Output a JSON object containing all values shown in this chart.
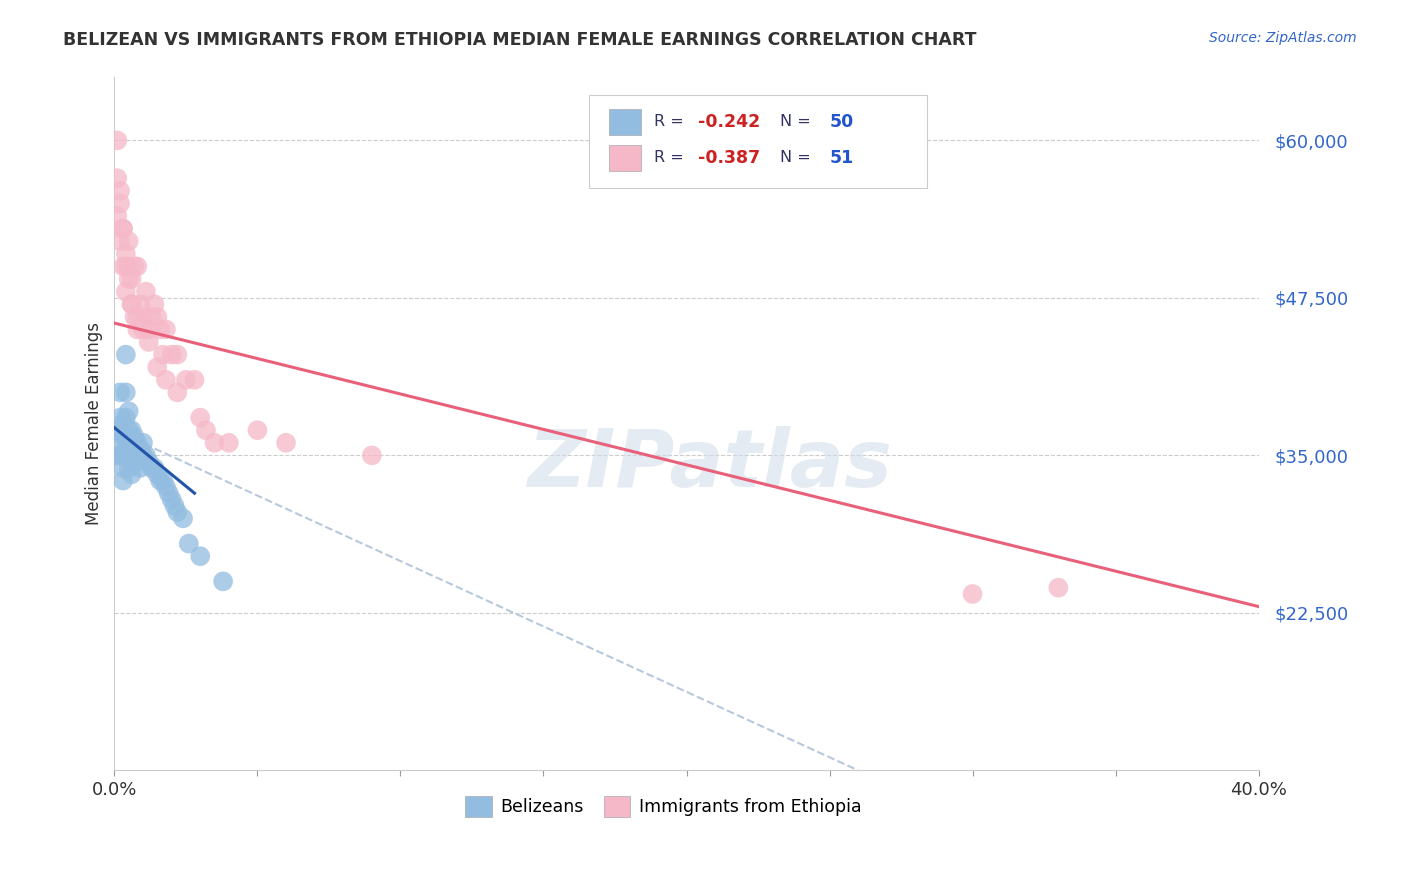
{
  "title": "BELIZEAN VS IMMIGRANTS FROM ETHIOPIA MEDIAN FEMALE EARNINGS CORRELATION CHART",
  "source": "Source: ZipAtlas.com",
  "ylabel": "Median Female Earnings",
  "xlim": [
    0.0,
    0.4
  ],
  "ylim": [
    10000,
    65000
  ],
  "ytick_vals": [
    22500,
    35000,
    47500,
    60000
  ],
  "blue_color": "#92bce0",
  "pink_color": "#f5b8c8",
  "trend_blue": "#2255aa",
  "trend_pink": "#e8607a",
  "trend_gray": "#b8c8dc",
  "watermark": "ZIPatlas",
  "belize_x": [
    0.001,
    0.001,
    0.002,
    0.002,
    0.002,
    0.003,
    0.003,
    0.003,
    0.003,
    0.004,
    0.004,
    0.004,
    0.004,
    0.005,
    0.005,
    0.005,
    0.006,
    0.006,
    0.006,
    0.007,
    0.007,
    0.008,
    0.008,
    0.009,
    0.009,
    0.01,
    0.01,
    0.011,
    0.012,
    0.013,
    0.014,
    0.015,
    0.016,
    0.017,
    0.018,
    0.019,
    0.02,
    0.021,
    0.022,
    0.024,
    0.001,
    0.002,
    0.003,
    0.004,
    0.005,
    0.006,
    0.007,
    0.026,
    0.03,
    0.038
  ],
  "belize_y": [
    37000,
    36000,
    40000,
    38000,
    35000,
    37500,
    36500,
    35000,
    34000,
    43000,
    40000,
    38000,
    36500,
    38500,
    37000,
    35000,
    37000,
    36000,
    34500,
    36500,
    35000,
    36000,
    34500,
    35500,
    34000,
    36000,
    35000,
    35000,
    34500,
    34000,
    34000,
    33500,
    33000,
    33000,
    32500,
    32000,
    31500,
    31000,
    30500,
    30000,
    35000,
    37000,
    33000,
    35500,
    34000,
    33500,
    35500,
    28000,
    27000,
    25000
  ],
  "ethiopia_x": [
    0.001,
    0.001,
    0.002,
    0.002,
    0.003,
    0.003,
    0.004,
    0.004,
    0.005,
    0.005,
    0.006,
    0.006,
    0.007,
    0.007,
    0.008,
    0.008,
    0.009,
    0.01,
    0.011,
    0.012,
    0.013,
    0.014,
    0.015,
    0.016,
    0.017,
    0.018,
    0.02,
    0.022,
    0.025,
    0.028,
    0.032,
    0.001,
    0.002,
    0.003,
    0.004,
    0.005,
    0.006,
    0.008,
    0.01,
    0.012,
    0.015,
    0.018,
    0.022,
    0.03,
    0.035,
    0.04,
    0.05,
    0.06,
    0.09,
    0.3,
    0.33
  ],
  "ethiopia_y": [
    57000,
    54000,
    56000,
    52000,
    53000,
    50000,
    51000,
    48000,
    52000,
    49000,
    49000,
    47000,
    50000,
    46000,
    50000,
    45000,
    47000,
    46000,
    48000,
    45000,
    46000,
    47000,
    46000,
    45000,
    43000,
    45000,
    43000,
    43000,
    41000,
    41000,
    37000,
    60000,
    55000,
    53000,
    50000,
    50000,
    47000,
    46000,
    45000,
    44000,
    42000,
    41000,
    40000,
    38000,
    36000,
    36000,
    37000,
    36000,
    35000,
    24000,
    24500
  ],
  "pink_trend_x0": 0.0,
  "pink_trend_y0": 45500,
  "pink_trend_x1": 0.4,
  "pink_trend_y1": 23000,
  "blue_trend_x0": 0.0,
  "blue_trend_y0": 37200,
  "blue_trend_x1": 0.028,
  "blue_trend_y1": 32000,
  "dash_trend_x0": 0.0,
  "dash_trend_y0": 37000,
  "dash_trend_x1": 0.26,
  "dash_trend_y1": 10000
}
